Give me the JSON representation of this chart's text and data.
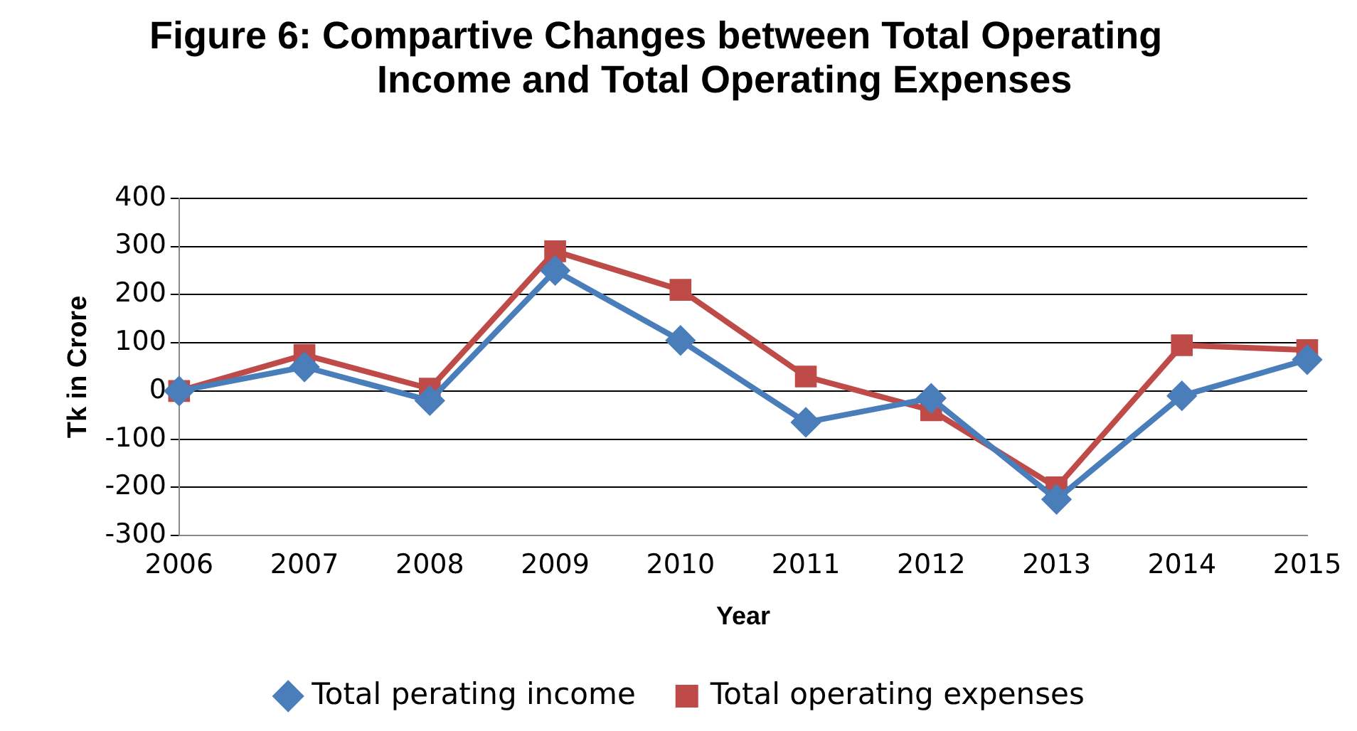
{
  "chart_data": {
    "type": "line",
    "title": "Figure 6: Compartive Changes between Total Operating Income and Total Operating Expenses",
    "ylabel": "Tk in Crore",
    "xlabel": "Year",
    "categories": [
      "2006",
      "2007",
      "2008",
      "2009",
      "2010",
      "2011",
      "2012",
      "2013",
      "2014",
      "2015"
    ],
    "series": [
      {
        "name": "Total perating income",
        "color": "#4a7ebb",
        "marker": "diamond",
        "values": [
          0,
          50,
          -20,
          250,
          105,
          -65,
          -15,
          -225,
          -10,
          65
        ]
      },
      {
        "name": "Total operating expenses",
        "color": "#be4b48",
        "marker": "square",
        "values": [
          0,
          75,
          5,
          290,
          210,
          30,
          -40,
          -200,
          95,
          85
        ]
      }
    ],
    "ylim": [
      -300,
      400
    ],
    "yticks": [
      -300,
      -200,
      -100,
      0,
      100,
      200,
      300,
      400
    ],
    "grid": "y",
    "legend": "bottom"
  }
}
